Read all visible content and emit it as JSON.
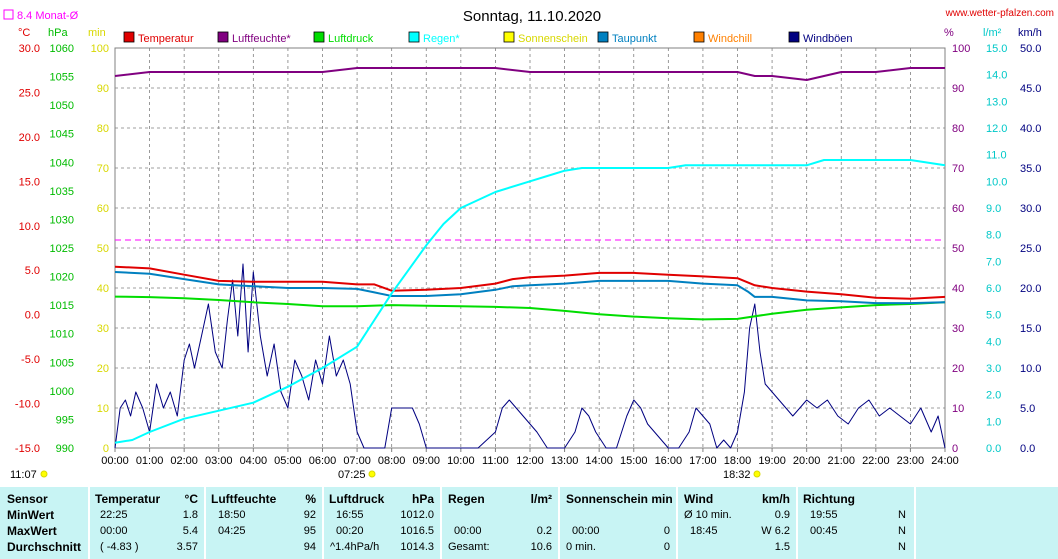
{
  "header": {
    "title": "Sonntag, 11.10.2020",
    "website": "www.wetter-pfalzen.com",
    "monthly_avg": "8.4 Monat-Ø",
    "unit_left_temp": "°C",
    "unit_left_hpa": "hPa",
    "unit_left_min": "min",
    "unit_right_pct": "%",
    "unit_right_lm2": "l/m²",
    "unit_right_kmh": "km/h",
    "sunrise": "07:25",
    "sunset": "18:32",
    "time_start": "11:07"
  },
  "colors": {
    "temperature": "#e00000",
    "humidity": "#800080",
    "pressure": "#00dd00",
    "rain": "#00ffff",
    "sunshine": "#ffff00",
    "dewpoint": "#0080c0",
    "windchill": "#ff8000",
    "gust": "#000080",
    "monthly_avg": "#ff00ff",
    "panel_bg": "#c8f4f4"
  },
  "chart_data": {
    "type": "line",
    "x_ticks": [
      "00:00",
      "01:00",
      "02:00",
      "03:00",
      "04:00",
      "05:00",
      "06:00",
      "07:00",
      "08:00",
      "09:00",
      "10:00",
      "11:00",
      "12:00",
      "13:00",
      "14:00",
      "15:00",
      "16:00",
      "17:00",
      "18:00",
      "19:00",
      "20:00",
      "21:00",
      "22:00",
      "23:00",
      "24:00"
    ],
    "axes": {
      "temp_c": {
        "label": "°C",
        "ylim": [
          -15,
          30
        ],
        "ticks": [
          "30.0",
          "25.0",
          "20.0",
          "15.0",
          "10.0",
          "5.0",
          "0.0",
          "-5.0",
          "-10.0",
          "-15.0"
        ]
      },
      "pressure_hpa": {
        "label": "hPa",
        "ylim": [
          990,
          1060
        ],
        "ticks": [
          "1060",
          "1055",
          "1050",
          "1045",
          "1040",
          "1035",
          "1030",
          "1025",
          "1020",
          "1015",
          "1010",
          "1005",
          "1000",
          "995",
          "990"
        ]
      },
      "sunshine_min": {
        "label": "min",
        "ylim": [
          0,
          100
        ],
        "ticks": [
          "100",
          "90",
          "80",
          "70",
          "60",
          "50",
          "40",
          "30",
          "20",
          "10",
          "0"
        ]
      },
      "humidity_pct": {
        "label": "%",
        "ylim": [
          0,
          100
        ],
        "ticks": [
          "100",
          "90",
          "80",
          "70",
          "60",
          "50",
          "40",
          "30",
          "20",
          "10",
          "0"
        ]
      },
      "rain_lm2": {
        "label": "l/m²",
        "ylim": [
          0,
          15
        ],
        "ticks": [
          "15.0",
          "14.0",
          "13.0",
          "12.0",
          "11.0",
          "10.0",
          "9.0",
          "8.0",
          "7.0",
          "6.0",
          "5.0",
          "4.0",
          "3.0",
          "2.0",
          "1.0",
          "0.0"
        ]
      },
      "wind_kmh": {
        "label": "km/h",
        "ylim": [
          0,
          50
        ],
        "ticks": [
          "50.0",
          "45.0",
          "40.0",
          "35.0",
          "30.0",
          "25.0",
          "20.0",
          "15.0",
          "10.0",
          "5.0",
          "0.0"
        ]
      }
    },
    "grid": true,
    "legend_position": "top",
    "monthly_avg_temp_c": 8.4,
    "series": [
      {
        "name": "Temperatur",
        "axis": "temp_c",
        "color": "#e00000",
        "x": [
          0,
          1,
          2,
          3,
          4,
          5,
          6,
          7,
          7.5,
          8,
          9,
          10,
          11,
          11.5,
          12,
          13,
          14,
          15,
          16,
          17,
          18,
          18.5,
          19,
          20,
          21,
          22,
          23,
          24
        ],
        "y": [
          5.4,
          5.2,
          4.5,
          3.8,
          3.7,
          3.7,
          3.7,
          3.4,
          3.4,
          2.7,
          2.8,
          3.0,
          3.5,
          4.0,
          4.2,
          4.4,
          4.7,
          4.7,
          4.5,
          4.3,
          4.1,
          3.3,
          3.0,
          2.6,
          2.3,
          1.9,
          1.8,
          2.0
        ]
      },
      {
        "name": "Luftfeuchte*",
        "axis": "humidity_pct",
        "color": "#800080",
        "x": [
          0,
          1,
          2,
          3,
          4,
          5,
          6,
          7,
          8,
          9,
          10,
          11,
          12,
          13,
          14,
          15,
          16,
          17,
          18,
          18.5,
          19,
          20,
          21,
          22,
          23,
          24
        ],
        "y": [
          93,
          94,
          94,
          94,
          94,
          94,
          94,
          95,
          95,
          95,
          95,
          95,
          94,
          94,
          94,
          94,
          94,
          94,
          94,
          93,
          93,
          92,
          94,
          94,
          95,
          95
        ]
      },
      {
        "name": "Luftdruck",
        "axis": "pressure_hpa",
        "color": "#00dd00",
        "x": [
          0,
          1,
          2,
          3,
          4,
          5,
          6,
          7,
          8,
          9,
          10,
          11,
          12,
          13,
          14,
          15,
          16,
          17,
          18,
          19,
          20,
          21,
          22,
          23,
          24
        ],
        "y": [
          1016.5,
          1016.4,
          1016.2,
          1015.9,
          1015.5,
          1015.2,
          1014.8,
          1014.8,
          1015.0,
          1014.9,
          1014.8,
          1014.7,
          1014.5,
          1014.0,
          1013.4,
          1013.0,
          1012.7,
          1012.5,
          1012.6,
          1013.5,
          1014.2,
          1014.6,
          1015.0,
          1015.2,
          1015.5
        ]
      },
      {
        "name": "Regen*",
        "axis": "rain_lm2",
        "color": "#00ffff",
        "x": [
          0,
          0.5,
          1,
          2,
          3,
          4,
          5,
          6,
          7,
          7.5,
          8,
          8.5,
          9,
          9.5,
          10,
          11,
          12,
          12.5,
          13,
          13.5,
          14,
          15,
          16,
          16.5,
          17,
          18,
          19,
          20,
          20.5,
          21,
          22,
          23,
          24
        ],
        "y": [
          0.2,
          0.3,
          0.6,
          1.1,
          1.4,
          1.7,
          2.3,
          3.0,
          3.8,
          4.8,
          5.8,
          6.7,
          7.6,
          8.4,
          9.0,
          9.6,
          10.0,
          10.2,
          10.4,
          10.5,
          10.5,
          10.5,
          10.5,
          10.6,
          10.6,
          10.6,
          10.6,
          10.6,
          10.8,
          10.8,
          10.8,
          10.8,
          10.6
        ]
      },
      {
        "name": "Sonnenschein",
        "axis": "sunshine_min",
        "color": "#ffff00",
        "x": [],
        "y": []
      },
      {
        "name": "Taupunkt",
        "axis": "temp_c",
        "color": "#0080c0",
        "x": [
          0,
          1,
          2,
          3,
          4,
          5,
          6,
          7,
          7.5,
          8,
          9,
          10,
          11,
          11.5,
          12,
          13,
          14,
          15,
          16,
          17,
          18,
          18.3,
          18.5,
          19,
          20,
          21,
          22,
          23,
          24
        ],
        "y": [
          4.8,
          4.6,
          4.0,
          3.4,
          3.2,
          3.0,
          3.0,
          2.9,
          2.5,
          2.1,
          2.1,
          2.3,
          2.8,
          3.2,
          3.3,
          3.5,
          3.8,
          3.8,
          3.8,
          3.5,
          3.3,
          2.6,
          2.0,
          2.0,
          1.6,
          1.5,
          1.3,
          1.3,
          1.4
        ]
      },
      {
        "name": "Windchill",
        "axis": "temp_c",
        "color": "#ff8000",
        "x": [],
        "y": []
      },
      {
        "name": "Windböen",
        "axis": "wind_kmh",
        "color": "#000080",
        "x": [
          0,
          0.15,
          0.3,
          0.45,
          0.6,
          0.8,
          1.0,
          1.2,
          1.4,
          1.6,
          1.8,
          2.0,
          2.15,
          2.3,
          2.5,
          2.7,
          2.9,
          3.1,
          3.25,
          3.4,
          3.55,
          3.7,
          3.85,
          4.0,
          4.2,
          4.4,
          4.6,
          4.8,
          5.0,
          5.2,
          5.4,
          5.6,
          5.8,
          6.0,
          6.2,
          6.4,
          6.6,
          6.8,
          7.0,
          7.2,
          7.5,
          7.8,
          8.0,
          8.2,
          8.4,
          8.6,
          8.8,
          9.0,
          9.5,
          10,
          10.5,
          11.0,
          11.2,
          11.4,
          11.6,
          11.8,
          12.0,
          12.2,
          12.5,
          13.0,
          13.3,
          13.5,
          13.7,
          13.9,
          14.2,
          14.5,
          14.8,
          15.0,
          15.2,
          15.4,
          15.6,
          15.8,
          16.0,
          16.3,
          16.6,
          16.8,
          17.0,
          17.2,
          17.4,
          17.6,
          17.8,
          18.0,
          18.2,
          18.35,
          18.5,
          18.65,
          18.8,
          19.0,
          19.2,
          19.4,
          19.6,
          19.8,
          20.0,
          20.3,
          20.6,
          20.9,
          21.2,
          21.5,
          21.8,
          22.1,
          22.4,
          22.7,
          23.0,
          23.3,
          23.6,
          23.8,
          24.0
        ],
        "y": [
          0,
          5,
          6,
          4,
          7,
          5,
          2,
          8,
          5,
          7,
          4,
          11,
          13,
          10,
          14,
          18,
          12,
          10,
          16,
          21,
          14,
          23,
          12,
          22,
          14,
          9,
          13,
          7,
          5,
          11,
          9,
          6,
          11,
          8,
          14,
          9,
          11,
          8,
          2,
          0,
          0,
          0,
          5,
          5,
          5,
          5,
          3,
          0,
          0,
          0,
          0,
          2,
          5,
          6,
          5,
          4,
          3,
          2,
          0,
          0,
          2,
          5,
          4,
          2,
          0,
          0,
          4,
          6,
          5,
          3,
          2,
          1,
          0,
          0,
          2,
          5,
          4,
          3,
          0,
          1,
          0,
          2,
          7,
          15,
          18,
          12,
          8,
          7,
          6,
          5,
          4,
          5,
          6,
          5,
          6,
          4,
          3,
          5,
          6,
          4,
          5,
          4,
          3,
          5,
          2,
          4,
          0
        ]
      }
    ]
  },
  "stats": {
    "sensor": {
      "header": "Sensor",
      "rows": [
        "MinWert",
        "MaxWert",
        "Durchschnitt"
      ]
    },
    "temperature": {
      "header": "Temperatur",
      "unit": "°C",
      "times": [
        "22:25",
        "00:00",
        "( -4.83 )"
      ],
      "values": [
        "1.8",
        "5.4",
        "3.57"
      ]
    },
    "humidity": {
      "header": "Luftfeuchte",
      "unit": "%",
      "times": [
        "18:50",
        "04:25",
        ""
      ],
      "values": [
        "92",
        "95",
        "94"
      ]
    },
    "pressure": {
      "header": "Luftdruck",
      "unit": "hPa",
      "times": [
        "16:55",
        "00:20",
        "^1.4hPa/h"
      ],
      "values": [
        "1012.0",
        "1016.5",
        "1014.3"
      ]
    },
    "rain": {
      "header": "Regen",
      "unit": "l/m²",
      "times": [
        "",
        "00:00",
        "Gesamt:"
      ],
      "values": [
        "",
        "0.2",
        "10.6"
      ]
    },
    "sunshine": {
      "header": "Sonnenschein min",
      "times": [
        "",
        "00:00",
        "0 min."
      ],
      "values": [
        "",
        "0",
        "0"
      ]
    },
    "wind": {
      "header": "Wind",
      "unit": "km/h",
      "times": [
        "Ø 10 min.",
        "18:45",
        ""
      ],
      "values": [
        "0.9",
        "W 6.2",
        "1.5"
      ]
    },
    "direction": {
      "header": "Richtung",
      "times": [
        "19:55",
        "00:45",
        ""
      ],
      "values": [
        "N",
        "N",
        "N"
      ]
    }
  }
}
